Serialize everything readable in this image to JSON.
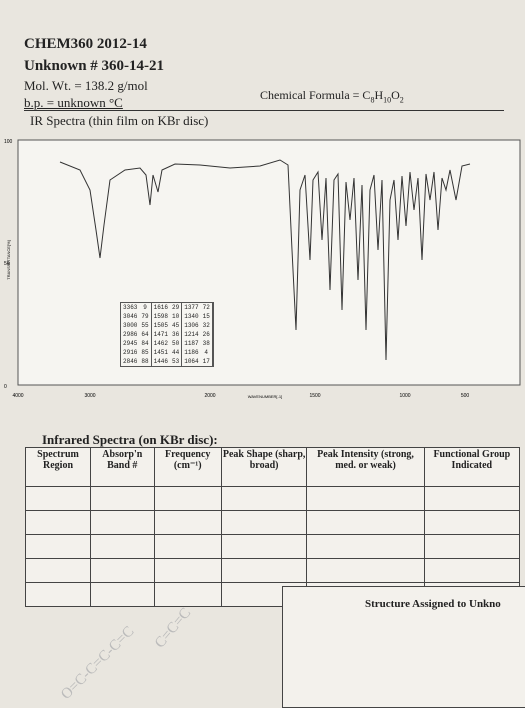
{
  "header": {
    "course": "CHEM360 2012-14",
    "unknown": "Unknown # 360-14-21",
    "mol_wt": "Mol. Wt. = 138.2 g/mol",
    "bp": "b.p. = unknown °C",
    "formula": {
      "label": "Chemical Formula = ",
      "parts": [
        "C",
        "8",
        "H",
        "10",
        "O",
        "2"
      ]
    }
  },
  "spectrum": {
    "title": "IR Spectra (thin film on KBr disc)",
    "y_label": "TRANSMITTANCE[%]",
    "x_label": "WAVENUMBER[-1]",
    "yticks": [
      "100",
      "50",
      "0"
    ],
    "xticks": [
      "4000",
      "3000",
      "2000",
      "1500",
      "1000",
      "500"
    ],
    "peaks": [
      [
        [
          3363,
          9
        ],
        [
          3046,
          79
        ],
        [
          3000,
          55
        ],
        [
          2986,
          64
        ],
        [
          2945,
          84
        ],
        [
          2916,
          85
        ],
        [
          2846,
          88
        ]
      ],
      [
        [
          1616,
          29
        ],
        [
          1598,
          10
        ],
        [
          1505,
          45
        ],
        [
          1471,
          36
        ],
        [
          1462,
          50
        ],
        [
          1451,
          44
        ],
        [
          1446,
          53
        ]
      ],
      [
        [
          1377,
          72
        ],
        [
          1340,
          15
        ],
        [
          1306,
          32
        ],
        [
          1214,
          26
        ],
        [
          1187,
          38
        ],
        [
          1186,
          4
        ],
        [
          1064,
          17
        ]
      ]
    ]
  },
  "worksheet": {
    "title": "Infrared Spectra (on KBr disc):",
    "headers": [
      "Spectrum Region",
      "Absorp'n Band #",
      "Frequency (cm⁻¹)",
      "Peak Shape (sharp, broad)",
      "Peak Intensity (strong, med. or weak)",
      "Functional Group Indicated"
    ],
    "structure_label": "Structure Assigned to Unkno",
    "handwriting": [
      "C=C=C",
      "O=C-C=C-C=C"
    ]
  }
}
